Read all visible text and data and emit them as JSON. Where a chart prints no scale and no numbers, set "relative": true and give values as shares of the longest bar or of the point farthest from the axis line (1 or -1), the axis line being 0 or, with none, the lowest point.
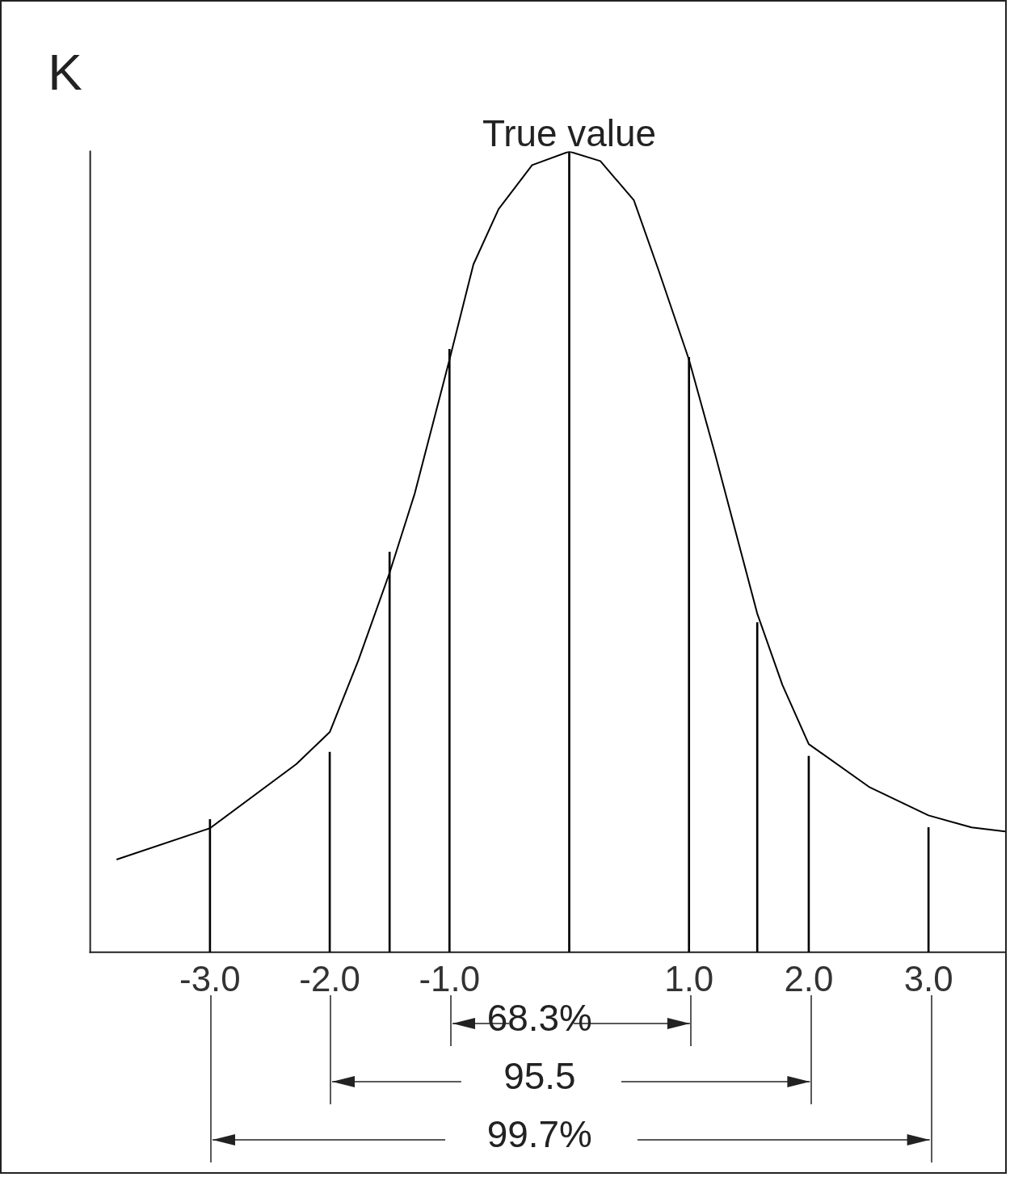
{
  "chart_data": {
    "type": "line",
    "relative": true,
    "ylabel": "K",
    "xlim": [
      -4,
      3.64
    ],
    "xticks": [
      {
        "value": -3,
        "label": "-3.0"
      },
      {
        "value": -2,
        "label": "-2.0"
      },
      {
        "value": -1,
        "label": "-1.0"
      },
      {
        "value": 1,
        "label": "1.0"
      },
      {
        "value": 2,
        "label": "2.0"
      },
      {
        "value": 3,
        "label": "3.0"
      }
    ],
    "series": [
      {
        "color": "#000000",
        "x": [
          -3.78,
          -3,
          -2.28,
          -2,
          -1.76,
          -1.5,
          -1.29,
          -1,
          -0.8,
          -0.59,
          -0.31,
          0,
          0.26,
          0.54,
          0.75,
          1,
          1.22,
          1.57,
          1.78,
          2,
          2.51,
          3,
          3.36,
          3.64
        ],
        "values": [
          0.116,
          0.155,
          0.235,
          0.275,
          0.365,
          0.474,
          0.573,
          0.74,
          0.859,
          0.928,
          0.983,
          1,
          0.988,
          0.939,
          0.85,
          0.74,
          0.621,
          0.423,
          0.334,
          0.26,
          0.206,
          0.171,
          0.156,
          0.151
        ]
      },
      {
        "type": "bar",
        "color": "#000000",
        "x": [
          -3,
          -2,
          -1.5,
          -1,
          0,
          1,
          1.57,
          2,
          3
        ],
        "values": [
          0.166,
          0.25,
          0.5,
          0.753,
          1,
          0.743,
          0.412,
          0.245,
          0.156
        ]
      }
    ],
    "annotations": [
      {
        "text": "True value",
        "x": 0,
        "y": 1
      },
      "68.3%",
      "95.5",
      "99.7%"
    ],
    "grid": false,
    "legend": false,
    "marker": "none",
    "line_style": "solid"
  }
}
